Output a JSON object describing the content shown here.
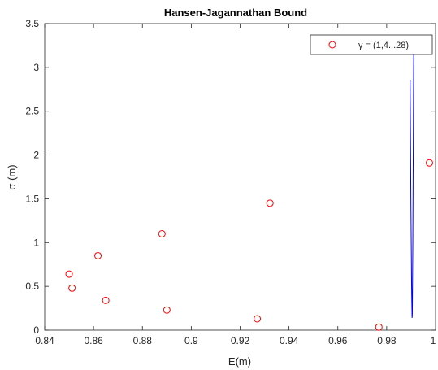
{
  "chart_data": {
    "type": "scatter",
    "title": "Hansen-Jagannathan Bound",
    "xlabel": "E(m)",
    "ylabel": "σ (m)",
    "xlim": [
      0.84,
      1.0
    ],
    "ylim": [
      0,
      3.5
    ],
    "x_ticks": [
      "0.84",
      "0.86",
      "0.88",
      "0.9",
      "0.92",
      "0.94",
      "0.96",
      "0.98",
      "1"
    ],
    "y_ticks": [
      "0",
      "0.5",
      "1",
      "1.5",
      "2",
      "2.5",
      "3",
      "3.5"
    ],
    "grid": false,
    "legend": {
      "position": "top-right",
      "label": "γ = (1,4...28)"
    },
    "series": [
      {
        "name": "γ = (1,4...28)",
        "marker": "circle",
        "color": "#ff0000",
        "x": [
          0.85,
          0.8512,
          0.8618,
          0.865,
          0.888,
          0.89,
          0.927,
          0.9322,
          0.9768,
          0.9975
        ],
        "y": [
          0.64,
          0.48,
          0.85,
          0.34,
          1.1,
          0.23,
          0.13,
          1.45,
          0.035,
          1.91
        ]
      },
      {
        "marker": "none",
        "color": "#0000ff",
        "x": [
          0.9896,
          0.9899,
          0.9902,
          0.9904,
          0.9905,
          0.9907,
          0.9909,
          0.9911
        ],
        "y": [
          2.86,
          1.5,
          0.5,
          0.14,
          0.18,
          1.0,
          2.2,
          3.35
        ]
      }
    ]
  }
}
